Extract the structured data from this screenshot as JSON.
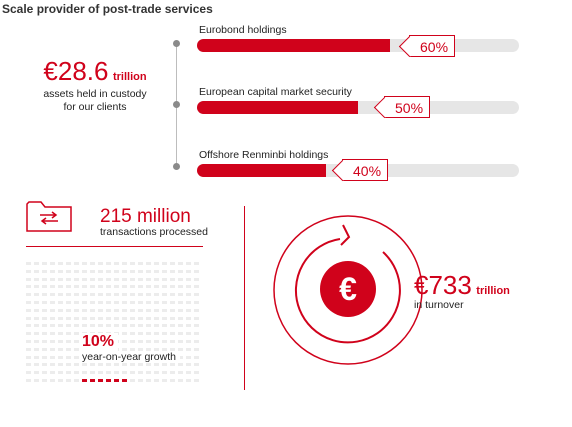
{
  "title": "Scale provider of post-trade services",
  "custody": {
    "value": "€28.6",
    "unit": "trillion",
    "line1": "assets held in custody",
    "line2": "for our clients"
  },
  "bars": [
    {
      "label": "Eurobond holdings",
      "percent_text": "60%",
      "value": 60
    },
    {
      "label": "European capital market security",
      "percent_text": "50%",
      "value": 50
    },
    {
      "label": "Offshore Renminbi holdings",
      "percent_text": "40%",
      "value": 40
    }
  ],
  "transactions": {
    "value": "215 million",
    "label": "transactions processed",
    "growth_value": "10%",
    "growth_label": "year-on-year growth"
  },
  "turnover": {
    "value": "€733",
    "unit": "trillion",
    "label": "in turnover",
    "symbol": "€"
  },
  "colors": {
    "accent": "#d0021b",
    "track": "#e6e6e6",
    "text": "#222222"
  },
  "icons": [
    "folder-transfer-icon",
    "circular-arrow-icon",
    "euro-icon"
  ]
}
